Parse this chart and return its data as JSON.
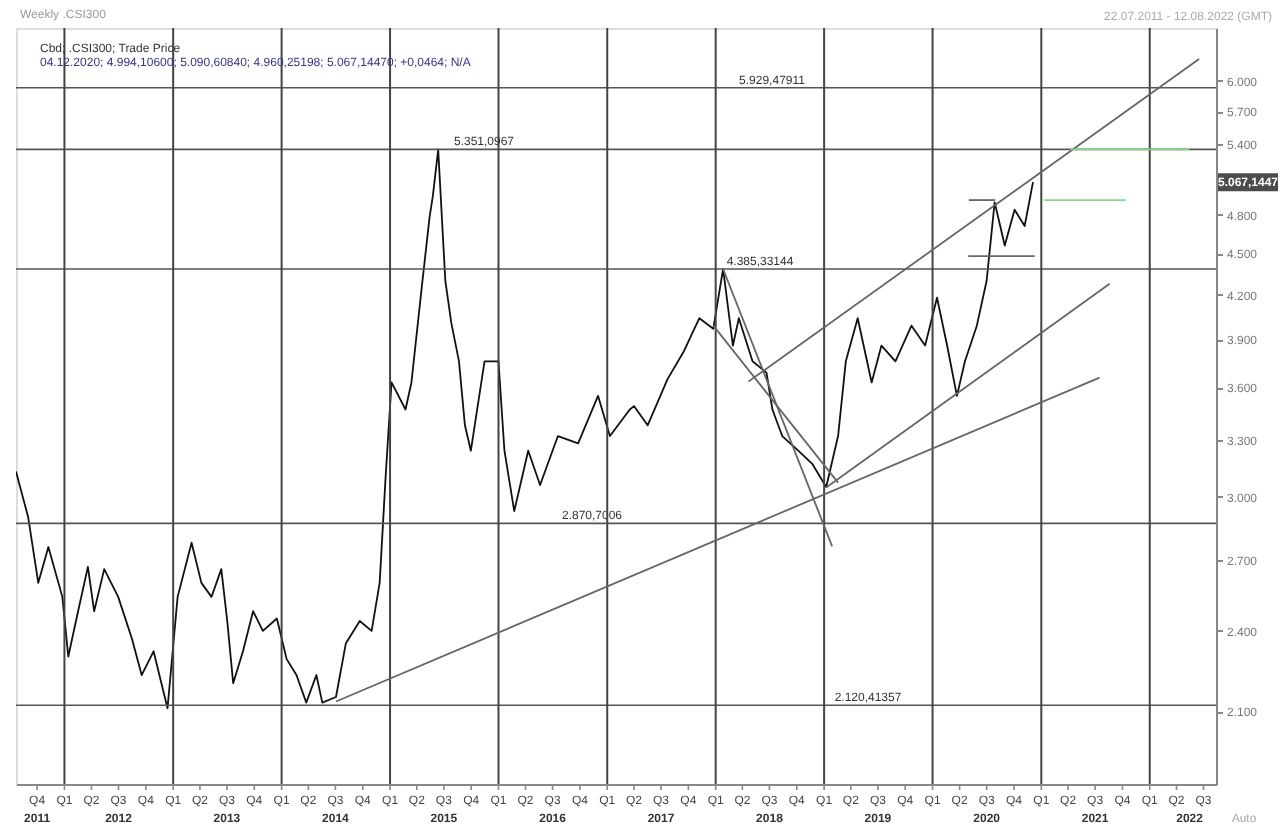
{
  "chart_data": {
    "type": "line",
    "title": "Weekly .CSI300",
    "subtitle": "Cbd; .CSI300; Trade Price",
    "annotations": [
      "04.12.2020; 4.994,10600; 5.090,60840; 4.960,25198; 5.067,14470; +0,0464; N/A",
      "22.07.2011 - 12.08.2022 (GMT)",
      {
        "text": "5.067,1447",
        "y": 5067.1447
      },
      "Auto"
    ],
    "log": "y",
    "grid": "x",
    "xlim": [
      "2011-07-22",
      "2022-08-12"
    ],
    "x2lim": [
      "2011-07-22",
      "2022-08-12"
    ],
    "ylim": [
      1860,
      6550
    ],
    "xticks": [
      {
        "value": "2011-10-01",
        "label": "Q4"
      },
      {
        "value": "2012-01-01",
        "label": "Q1"
      },
      {
        "value": "2012-04-01",
        "label": "Q2"
      },
      {
        "value": "2012-07-01",
        "label": "Q3"
      },
      {
        "value": "2012-10-01",
        "label": "Q4"
      },
      {
        "value": "2013-01-01",
        "label": "Q1"
      },
      {
        "value": "2013-04-01",
        "label": "Q2"
      },
      {
        "value": "2013-07-01",
        "label": "Q3"
      },
      {
        "value": "2013-10-01",
        "label": "Q4"
      },
      {
        "value": "2014-01-01",
        "label": "Q1"
      },
      {
        "value": "2014-04-01",
        "label": "Q2"
      },
      {
        "value": "2014-07-01",
        "label": "Q3"
      },
      {
        "value": "2014-10-01",
        "label": "Q4"
      },
      {
        "value": "2015-01-01",
        "label": "Q1"
      },
      {
        "value": "2015-04-01",
        "label": "Q2"
      },
      {
        "value": "2015-07-01",
        "label": "Q3"
      },
      {
        "value": "2015-10-01",
        "label": "Q4"
      },
      {
        "value": "2016-01-01",
        "label": "Q1"
      },
      {
        "value": "2016-04-01",
        "label": "Q2"
      },
      {
        "value": "2016-07-01",
        "label": "Q3"
      },
      {
        "value": "2016-10-01",
        "label": "Q4"
      },
      {
        "value": "2017-01-01",
        "label": "Q1"
      },
      {
        "value": "2017-04-01",
        "label": "Q2"
      },
      {
        "value": "2017-07-01",
        "label": "Q3"
      },
      {
        "value": "2017-10-01",
        "label": "Q4"
      },
      {
        "value": "2018-01-01",
        "label": "Q1"
      },
      {
        "value": "2018-04-01",
        "label": "Q2"
      },
      {
        "value": "2018-07-01",
        "label": "Q3"
      },
      {
        "value": "2018-10-01",
        "label": "Q4"
      },
      {
        "value": "2019-01-01",
        "label": "Q1"
      },
      {
        "value": "2019-04-01",
        "label": "Q2"
      },
      {
        "value": "2019-07-01",
        "label": "Q3"
      },
      {
        "value": "2019-10-01",
        "label": "Q4"
      },
      {
        "value": "2020-01-01",
        "label": "Q1"
      },
      {
        "value": "2020-04-01",
        "label": "Q2"
      },
      {
        "value": "2020-07-01",
        "label": "Q3"
      },
      {
        "value": "2020-10-01",
        "label": "Q4"
      },
      {
        "value": "2021-01-01",
        "label": "Q1"
      },
      {
        "value": "2021-04-01",
        "label": "Q2"
      },
      {
        "value": "2021-07-01",
        "label": "Q3"
      },
      {
        "value": "2021-10-01",
        "label": "Q4"
      },
      {
        "value": "2022-01-01",
        "label": "Q1"
      },
      {
        "value": "2022-04-01",
        "label": "Q2"
      },
      {
        "value": "2022-07-01",
        "label": "Q3"
      }
    ],
    "x2ticks": [
      {
        "value": "2011-10-01",
        "label": "2011"
      },
      {
        "value": "2012-07-01",
        "label": "2012"
      },
      {
        "value": "2013-07-01",
        "label": "2013"
      },
      {
        "value": "2014-07-01",
        "label": "2014"
      },
      {
        "value": "2015-07-01",
        "label": "2015"
      },
      {
        "value": "2016-07-01",
        "label": "2016"
      },
      {
        "value": "2017-07-01",
        "label": "2017"
      },
      {
        "value": "2018-07-01",
        "label": "2018"
      },
      {
        "value": "2019-07-01",
        "label": "2019"
      },
      {
        "value": "2020-07-01",
        "label": "2020"
      },
      {
        "value": "2021-07-01",
        "label": "2021"
      },
      {
        "value": "2022-05-15",
        "label": "2022"
      }
    ],
    "yticks": [
      {
        "value": 2100,
        "label": "2.100"
      },
      {
        "value": 2400,
        "label": "2.400"
      },
      {
        "value": 2700,
        "label": "2.700"
      },
      {
        "value": 3000,
        "label": "3.000"
      },
      {
        "value": 3300,
        "label": "3.300"
      },
      {
        "value": 3600,
        "label": "3.600"
      },
      {
        "value": 3900,
        "label": "3.900"
      },
      {
        "value": 4200,
        "label": "4.200"
      },
      {
        "value": 4500,
        "label": "4.500"
      },
      {
        "value": 4800,
        "label": "4.800"
      },
      {
        "value": 5400,
        "label": "5.400"
      },
      {
        "value": 5700,
        "label": "5.700"
      },
      {
        "value": 6000,
        "label": "6.000"
      }
    ],
    "ref_lines": [
      {
        "axis": "y",
        "value": 5929.47911,
        "label": "5.929,47911",
        "color": "#555555"
      },
      {
        "axis": "y",
        "value": 5351.0967,
        "label": "5.351,0967",
        "color": "#555555"
      },
      {
        "axis": "y",
        "value": 4385.33144,
        "label": "4.385,33144",
        "color": "#555555"
      },
      {
        "axis": "y",
        "value": 2870.7006,
        "label": "2.870,7006",
        "color": "#555555"
      },
      {
        "axis": "y",
        "value": 2120.41357,
        "label": "2.120,41357",
        "color": "#555555"
      }
    ],
    "series": [
      {
        "type": "line",
        "color": "#111111",
        "x": [
          "2011-07-22",
          "2011-09-01",
          "2011-10-05",
          "2011-11-08",
          "2011-12-25",
          "2012-01-14",
          "2012-02-16",
          "2012-03-20",
          "2012-04-10",
          "2012-05-14",
          "2012-06-30",
          "2012-08-15",
          "2012-09-17",
          "2012-10-27",
          "2012-12-13",
          "2013-01-16",
          "2013-03-04",
          "2013-04-06",
          "2013-05-10",
          "2013-06-12",
          "2013-07-02",
          "2013-07-22",
          "2013-08-24",
          "2013-09-27",
          "2013-10-30",
          "2013-12-16",
          "2014-01-18",
          "2014-02-20",
          "2014-03-25",
          "2014-04-28",
          "2014-05-18",
          "2014-07-03",
          "2014-08-05",
          "2014-09-21",
          "2014-10-31",
          "2014-11-27",
          "2014-12-17",
          "2015-01-06",
          "2015-02-22",
          "2015-03-14",
          "2015-04-17",
          "2015-05-14",
          "2015-05-25",
          "2015-06-12",
          "2015-07-06",
          "2015-07-26",
          "2015-08-21",
          "2015-09-10",
          "2015-09-30",
          "2015-11-15",
          "2016-01-01",
          "2016-01-21",
          "2016-02-23",
          "2016-04-10",
          "2016-05-20",
          "2016-07-19",
          "2016-09-25",
          "2016-12-01",
          "2017-01-10",
          "2017-03-18",
          "2017-04-01",
          "2017-05-17",
          "2017-07-23",
          "2017-09-15",
          "2017-11-07",
          "2017-12-24",
          "2018-01-26",
          "2018-02-28",
          "2018-03-20",
          "2018-05-05",
          "2018-06-21",
          "2018-07-11",
          "2018-08-13",
          "2018-10-06",
          "2018-11-22",
          "2019-01-08",
          "2019-02-17",
          "2019-03-15",
          "2019-04-24",
          "2019-06-10",
          "2019-07-13",
          "2019-08-29",
          "2019-10-22",
          "2019-12-07",
          "2020-01-16",
          "2020-02-19",
          "2020-03-23",
          "2020-04-19",
          "2020-05-29",
          "2020-07-01",
          "2020-07-28",
          "2020-08-31",
          "2020-10-03",
          "2020-11-06",
          "2020-12-04"
        ],
        "values": [
          3130,
          2900,
          2600,
          2760,
          2540,
          2300,
          2480,
          2670,
          2480,
          2660,
          2540,
          2370,
          2230,
          2320,
          2110,
          2540,
          2780,
          2600,
          2540,
          2660,
          2440,
          2200,
          2320,
          2480,
          2400,
          2450,
          2290,
          2230,
          2130,
          2230,
          2130,
          2150,
          2350,
          2440,
          2400,
          2600,
          3100,
          3630,
          3470,
          3630,
          4240,
          4780,
          4950,
          5350,
          4300,
          4010,
          3760,
          3380,
          3240,
          3760,
          3760,
          3240,
          2930,
          3240,
          3060,
          3320,
          3280,
          3550,
          3320,
          3470,
          3490,
          3380,
          3650,
          3820,
          4040,
          3970,
          4385,
          3860,
          4040,
          3760,
          3690,
          3470,
          3320,
          3240,
          3170,
          3050,
          3320,
          3760,
          4040,
          3630,
          3860,
          3760,
          3990,
          3860,
          4180,
          3860,
          3550,
          3760,
          3990,
          4300,
          4900,
          4560,
          4840,
          4710,
          5067
        ]
      },
      {
        "type": "line",
        "color": "#666666",
        "x": [
          "2014-07-03",
          "2021-07-16"
        ],
        "values": [
          2134,
          3659
        ]
      },
      {
        "type": "line",
        "color": "#666666",
        "x": [
          "2019-01-08",
          "2021-08-19"
        ],
        "values": [
          3047,
          4278
        ]
      },
      {
        "type": "line",
        "color": "#666666",
        "x": [
          "2018-04-21",
          "2022-06-16"
        ],
        "values": [
          3635,
          6220
        ]
      },
      {
        "type": "line",
        "color": "#666666",
        "x": [
          "2018-01-26",
          "2019-01-28"
        ],
        "values": [
          4385,
          2763
        ]
      },
      {
        "type": "line",
        "color": "#666666",
        "x": [
          "2017-12-24",
          "2019-02-17"
        ],
        "values": [
          3990,
          3072
        ]
      },
      {
        "type": "line",
        "color": "#666666",
        "x": [
          "2020-05-02",
          "2020-07-30"
        ],
        "values": [
          4918,
          4918
        ]
      },
      {
        "type": "line",
        "color": "#666666",
        "x": [
          "2020-04-30",
          "2020-12-10"
        ],
        "values": [
          4480,
          4480
        ]
      },
      {
        "type": "line",
        "color": "#7fdc7f",
        "x": [
          "2021-04-08",
          "2022-05-14"
        ],
        "values": [
          5351,
          5351
        ]
      },
      {
        "type": "line",
        "color": "#7fdc7f",
        "x": [
          "2021-01-12",
          "2021-10-12"
        ],
        "values": [
          4918,
          4918
        ]
      }
    ]
  }
}
